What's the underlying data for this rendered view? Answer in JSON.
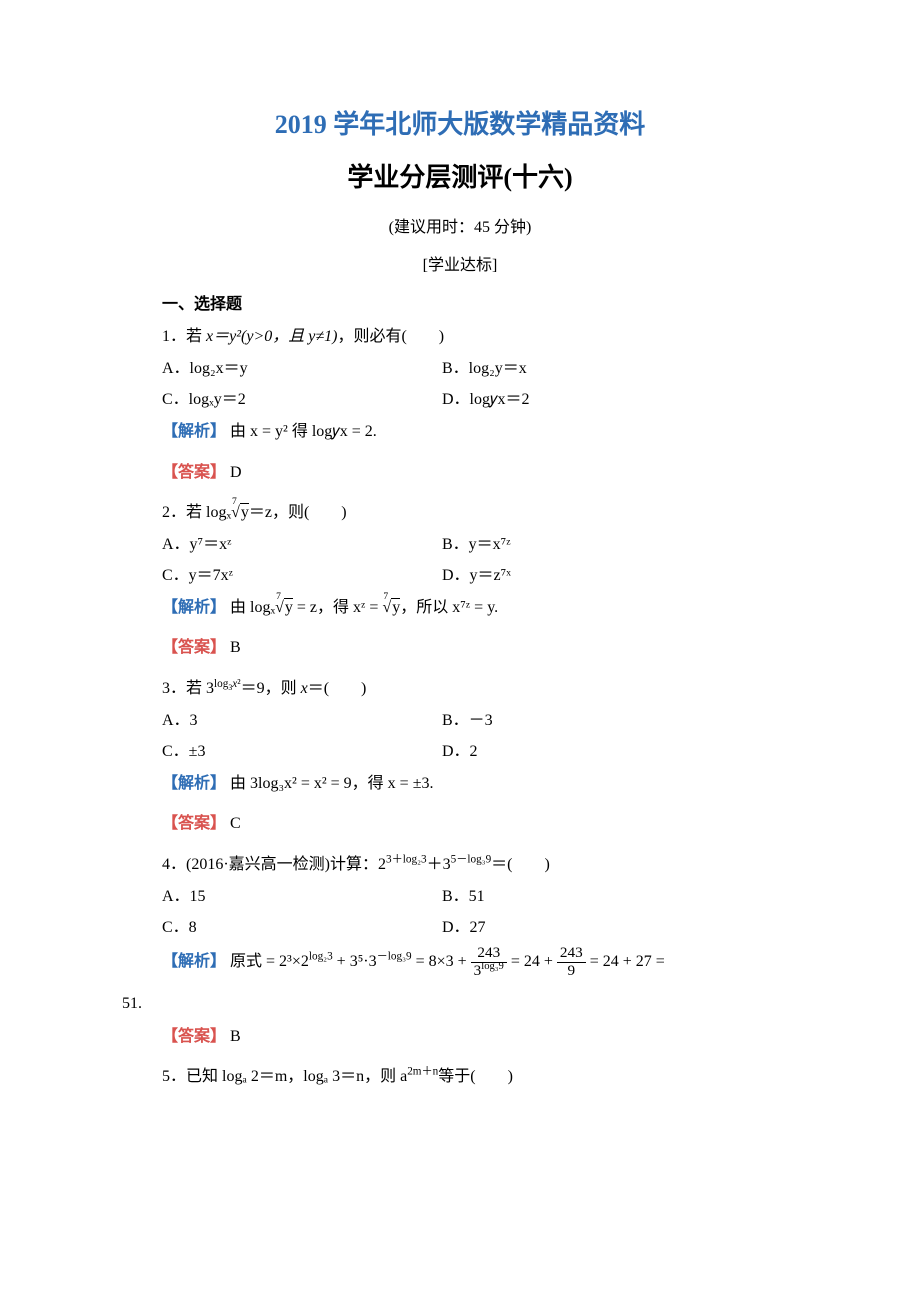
{
  "header": {
    "title_blue": "2019 学年北师大版数学精品资料",
    "title_black": "学业分层测评(十六)",
    "time_hint": "(建议用时：45 分钟)",
    "section_label": "[学业达标]",
    "part": "一、选择题"
  },
  "colors": {
    "title": "#2e6db5",
    "analysis": "#2e6db5",
    "answer": "#d9534f",
    "text": "#000000",
    "background": "#ffffff"
  },
  "q1": {
    "stem_prefix": "1．若 ",
    "stem_math": "x＝y²(y>0，且 y≠1)",
    "stem_suffix": "，则必有(　　)",
    "A": "A．log₂x＝y",
    "B": "B．log₂y＝x",
    "C": "C．logₓy＝2",
    "D": "D．log𝑦x＝2",
    "analysis_label": "【解析】",
    "analysis_text": " 由 x = y² 得 log𝑦x = 2.",
    "answer_label": "【答案】",
    "answer_value": " D"
  },
  "q2": {
    "stem_prefix": "2．若 logₓ",
    "stem_root_deg": "7",
    "stem_root_arg": "y",
    "stem_suffix": "＝z，则(　　)",
    "A": "A．y⁷＝xᶻ",
    "B": "B．y＝x⁷ᶻ",
    "C": "C．y＝7xᶻ",
    "D": "D．y＝z⁷ˣ",
    "analysis_label": "【解析】",
    "analysis_text_1": " 由 logₓ",
    "analysis_text_2": " = z，得 xᶻ = ",
    "analysis_text_3": "，所以 x⁷ᶻ = y.",
    "answer_label": "【答案】",
    "answer_value": " B"
  },
  "q3": {
    "stem": "3．若 3^(log₃x²)＝9，则 x＝(　　)",
    "A": "A．3",
    "B": "B．－3",
    "C": "C．±3",
    "D": "D．2",
    "analysis_label": "【解析】",
    "analysis_text": " 由 3log₃x² = x² = 9，得 x = ±3.",
    "answer_label": "【答案】",
    "answer_value": " C"
  },
  "q4": {
    "stem_prefix": "4．(2016·嘉兴高一检测)计算：2",
    "stem_exp1": "3＋log₂3",
    "stem_mid": "＋3",
    "stem_exp2": "5－log₃9",
    "stem_suffix": "＝(　　)",
    "A": "A．15",
    "B": "B．51",
    "C": "C．8",
    "D": "D．27",
    "analysis_label": "【解析】",
    "analysis_prefix": " 原式 = 2³×2^(log₂3) + 3⁵·3^(－log₃9) = 8×3 + ",
    "frac1_num": "243",
    "frac1_den": "3^(log₃9)",
    "analysis_mid1": " = 24 + ",
    "frac2_num": "243",
    "frac2_den": "9",
    "analysis_tail": " = 24 + 27 =",
    "result_line": "51.",
    "answer_label": "【答案】",
    "answer_value": " B"
  },
  "q5": {
    "stem_prefix": "5．已知 logₐ 2＝m，logₐ 3＝n，则 a",
    "stem_exp": "2m＋n",
    "stem_suffix": "等于(　　)"
  }
}
